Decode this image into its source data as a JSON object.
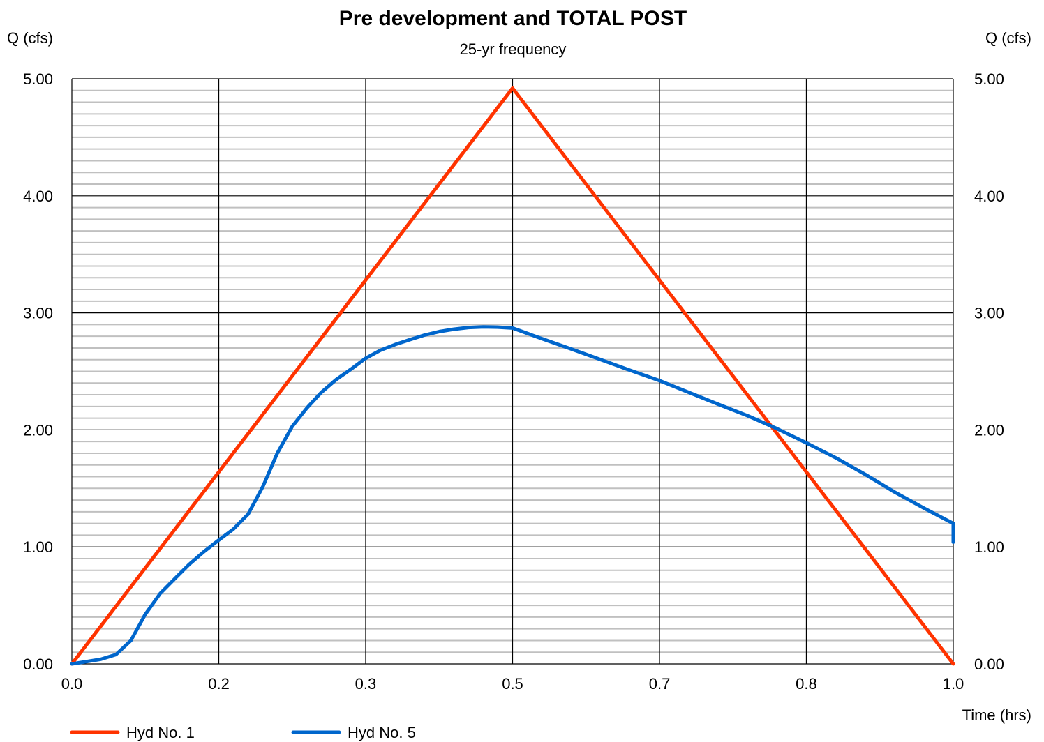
{
  "chart_data": {
    "type": "line",
    "title": "Pre development and TOTAL POST",
    "subtitle": "25-yr frequency",
    "ylabel_left": "Q (cfs)",
    "ylabel_right": "Q (cfs)",
    "xlabel": "Time (hrs)",
    "xlim": [
      0,
      1.0
    ],
    "ylim": [
      0,
      5.0
    ],
    "x_ticks": [
      {
        "value": 0.0,
        "label": "0.0"
      },
      {
        "value": 0.1667,
        "label": "0.2"
      },
      {
        "value": 0.3333,
        "label": "0.3"
      },
      {
        "value": 0.5,
        "label": "0.5"
      },
      {
        "value": 0.6667,
        "label": "0.7"
      },
      {
        "value": 0.8333,
        "label": "0.8"
      },
      {
        "value": 1.0,
        "label": "1.0"
      }
    ],
    "y_ticks": [
      {
        "value": 0,
        "label": "0.00"
      },
      {
        "value": 1,
        "label": "1.00"
      },
      {
        "value": 2,
        "label": "2.00"
      },
      {
        "value": 3,
        "label": "3.00"
      },
      {
        "value": 4,
        "label": "4.00"
      },
      {
        "value": 5,
        "label": "5.00"
      }
    ],
    "y_minor_step": 0.1,
    "grid": true,
    "legend_position": "bottom-left",
    "series": [
      {
        "name": "Hyd No. 1",
        "color": "#ff3300",
        "points": [
          [
            0.0,
            0.0
          ],
          [
            0.5,
            4.92
          ],
          [
            1.0,
            0.0
          ]
        ]
      },
      {
        "name": "Hyd No. 5",
        "color": "#0066cc",
        "points": [
          [
            0.0,
            0.0
          ],
          [
            0.017,
            0.02
          ],
          [
            0.033,
            0.04
          ],
          [
            0.05,
            0.08
          ],
          [
            0.067,
            0.2
          ],
          [
            0.083,
            0.42
          ],
          [
            0.1,
            0.6
          ],
          [
            0.117,
            0.73
          ],
          [
            0.133,
            0.85
          ],
          [
            0.15,
            0.96
          ],
          [
            0.167,
            1.06
          ],
          [
            0.183,
            1.15
          ],
          [
            0.2,
            1.28
          ],
          [
            0.217,
            1.52
          ],
          [
            0.233,
            1.8
          ],
          [
            0.25,
            2.03
          ],
          [
            0.267,
            2.19
          ],
          [
            0.283,
            2.32
          ],
          [
            0.3,
            2.43
          ],
          [
            0.317,
            2.52
          ],
          [
            0.333,
            2.61
          ],
          [
            0.35,
            2.68
          ],
          [
            0.367,
            2.73
          ],
          [
            0.383,
            2.77
          ],
          [
            0.4,
            2.81
          ],
          [
            0.417,
            2.84
          ],
          [
            0.433,
            2.86
          ],
          [
            0.45,
            2.875
          ],
          [
            0.467,
            2.88
          ],
          [
            0.483,
            2.878
          ],
          [
            0.5,
            2.87
          ],
          [
            0.533,
            2.78
          ],
          [
            0.567,
            2.69
          ],
          [
            0.6,
            2.6
          ],
          [
            0.633,
            2.51
          ],
          [
            0.667,
            2.42
          ],
          [
            0.7,
            2.32
          ],
          [
            0.733,
            2.22
          ],
          [
            0.767,
            2.12
          ],
          [
            0.8,
            2.01
          ],
          [
            0.833,
            1.89
          ],
          [
            0.867,
            1.76
          ],
          [
            0.9,
            1.62
          ],
          [
            0.933,
            1.47
          ],
          [
            0.967,
            1.33
          ],
          [
            1.0,
            1.2
          ],
          [
            1.0,
            1.04
          ]
        ]
      }
    ]
  }
}
